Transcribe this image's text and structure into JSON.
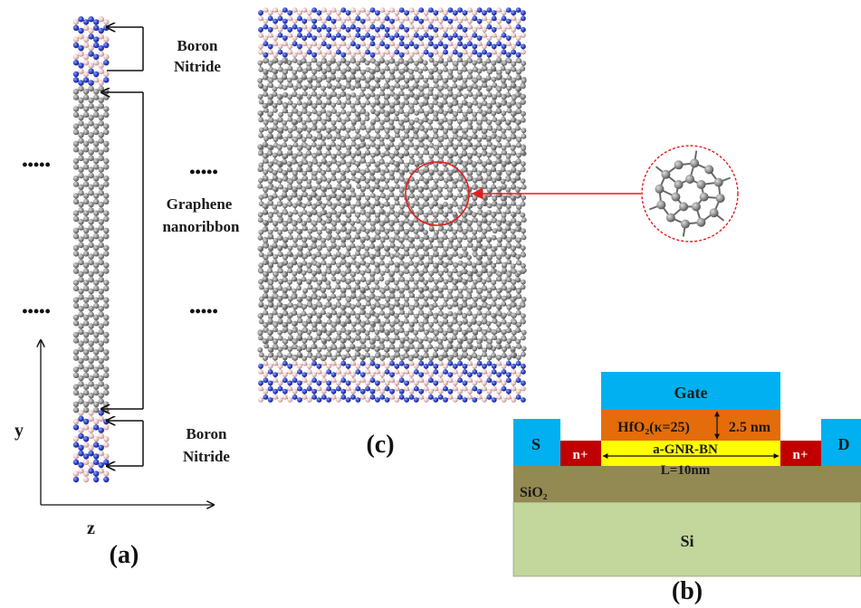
{
  "panel_a": {
    "label": "(a)",
    "top_bn_label": [
      "Boron",
      "Nitride"
    ],
    "middle_label": [
      "Graphene",
      "nanoribbon"
    ],
    "bottom_bn_label": [
      "Boron",
      "Nitride"
    ],
    "ellipsis": "•••••",
    "axis_y": "y",
    "axis_z": "z"
  },
  "panel_c": {
    "label": "(c)",
    "ellipsis": "•••••"
  },
  "panel_b": {
    "label": "(b)",
    "gate": "Gate",
    "oxide": "HfO₂(κ=25)",
    "oxide_thickness": "2.5 nm",
    "channel": "a-GNR-BN",
    "length": "L=10nm",
    "source": "S",
    "drain": "D",
    "doping_left": "n+",
    "doping_right": "n+",
    "sio2": "SiO₂",
    "si": "Si"
  },
  "colors": {
    "carbon": "#8c8c8c",
    "nitrogen": "#2c3fc4",
    "boron": "#e7c0c0",
    "bond": "#6a6a6a",
    "gate": "#00b0f0",
    "oxide": "#e46c0a",
    "channel": "#ffff00",
    "ndoped": "#c00000",
    "sio2": "#938953",
    "si": "#c3d69b",
    "highlight": "#e51c1c"
  }
}
